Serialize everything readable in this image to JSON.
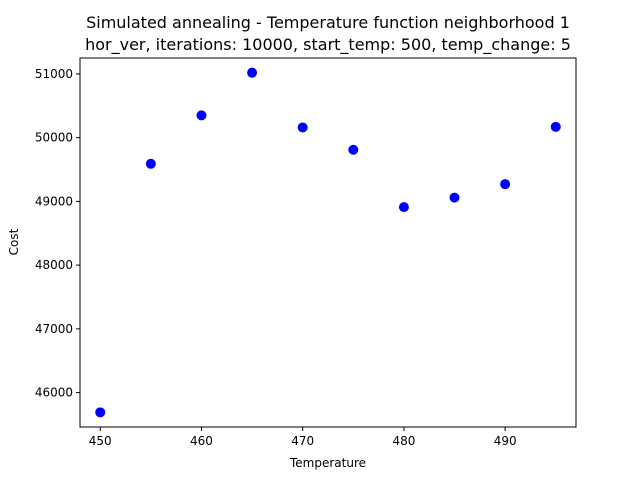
{
  "chart_data": {
    "type": "scatter",
    "title_line1": "Simulated annealing - Temperature function neighborhood 1",
    "title_line2": "hor_ver, iterations: 10000, start_temp: 500, temp_change: 5",
    "xlabel": "Temperature",
    "ylabel": "Cost",
    "xlim": [
      448,
      497
    ],
    "ylim": [
      45460,
      51250
    ],
    "xticks": [
      450,
      460,
      470,
      480,
      490
    ],
    "yticks": [
      46000,
      47000,
      48000,
      49000,
      50000,
      51000
    ],
    "grid": false,
    "marker_color": "#0000ff",
    "points": [
      {
        "x": 450,
        "y": 45690
      },
      {
        "x": 455,
        "y": 49590
      },
      {
        "x": 460,
        "y": 50350
      },
      {
        "x": 465,
        "y": 51020
      },
      {
        "x": 470,
        "y": 50160
      },
      {
        "x": 475,
        "y": 49810
      },
      {
        "x": 480,
        "y": 48910
      },
      {
        "x": 485,
        "y": 49060
      },
      {
        "x": 490,
        "y": 49270
      },
      {
        "x": 495,
        "y": 50170
      }
    ]
  }
}
